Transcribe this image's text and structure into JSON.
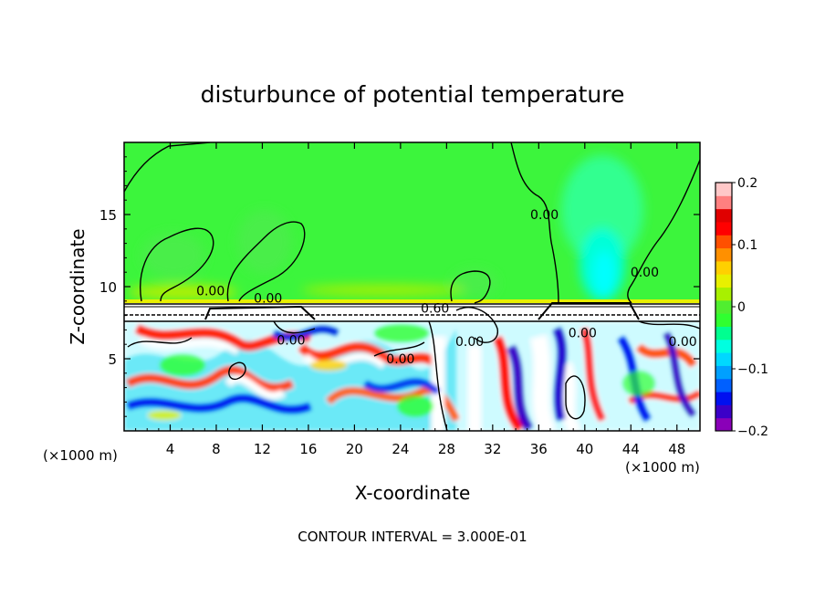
{
  "chart_data": {
    "type": "heatmap",
    "title": "disturbunce of potential temperature",
    "xlabel": "X-coordinate",
    "ylabel": "Z-coordinate",
    "x_unit": "(×1000 m)",
    "z_unit": "(×1000 m)",
    "xlim": [
      0,
      50
    ],
    "ylim": [
      0,
      20
    ],
    "x_ticks": [
      4,
      8,
      12,
      16,
      20,
      24,
      28,
      32,
      36,
      40,
      44,
      48
    ],
    "y_ticks": [
      5,
      10,
      15
    ],
    "colorbar": {
      "range": [
        -0.2,
        0.2
      ],
      "ticks": [
        "0.2",
        "0.1",
        "0",
        "−0.1",
        "−0.2"
      ],
      "colors": [
        "#8a00b8",
        "#3b00c8",
        "#0010f0",
        "#0060ff",
        "#00a0ff",
        "#00d8ff",
        "#00ffe0",
        "#00ff90",
        "#30ff30",
        "#50ee30",
        "#a8f000",
        "#e8f000",
        "#ffd000",
        "#ff9000",
        "#ff5000",
        "#ff0000",
        "#e00000",
        "#ff8080",
        "#ffc8c8"
      ]
    },
    "contour_labels": [
      {
        "text": "0.00",
        "x": 7.5,
        "z": 9.7
      },
      {
        "text": "0.00",
        "x": 12.5,
        "z": 9.2
      },
      {
        "text": "0.60",
        "x": 27.0,
        "z": 8.5
      },
      {
        "text": "0.00",
        "x": 14.5,
        "z": 6.3
      },
      {
        "text": "0.00",
        "x": 24.0,
        "z": 5.0
      },
      {
        "text": "0.00",
        "x": 30.0,
        "z": 6.2
      },
      {
        "text": "0.00",
        "x": 39.8,
        "z": 6.8
      },
      {
        "text": "0.00",
        "x": 48.5,
        "z": 6.2
      },
      {
        "text": "0.00",
        "x": 36.5,
        "z": 15.0
      },
      {
        "text": "0.00",
        "x": 45.2,
        "z": 11.0
      }
    ],
    "inversion_layer_z": [
      7.6,
      9.0
    ],
    "footer": "CONTOUR INTERVAL = 3.000E-01"
  }
}
